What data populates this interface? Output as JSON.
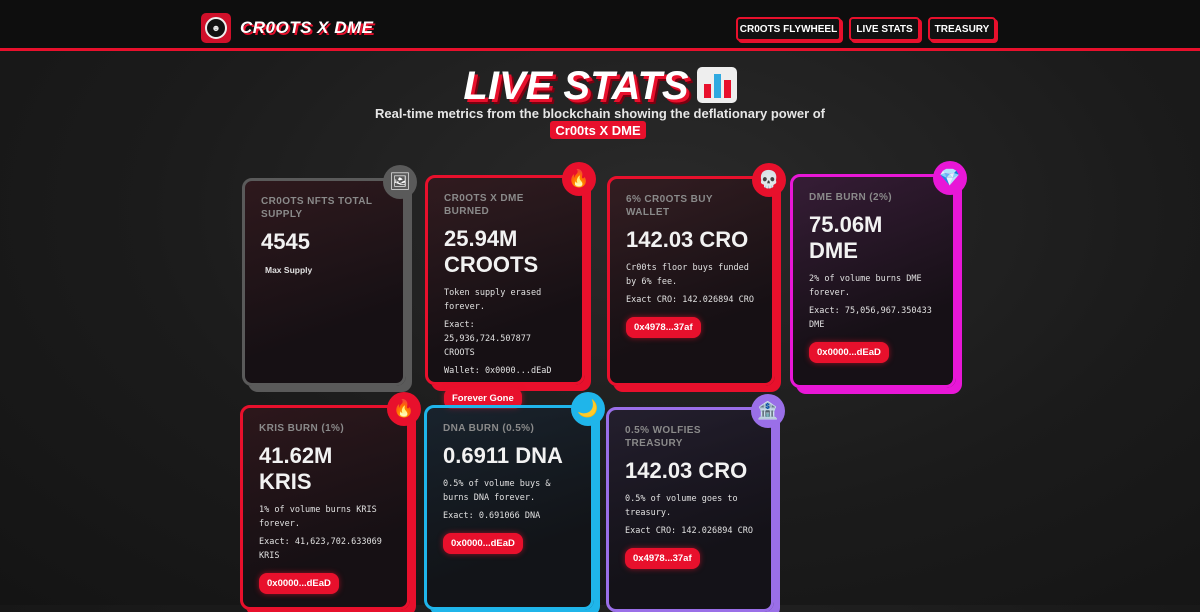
{
  "header": {
    "brand": "CR0OTS X DME",
    "nav": [
      "CR0OTS FLYWHEEL",
      "LIVE STATS",
      "TREASURY"
    ]
  },
  "hero": {
    "title": "LIVE STATS",
    "subtitle": "Real-time metrics from the blockchain showing the deflationary power of",
    "highlight": "Cr00ts X DME"
  },
  "cards": [
    {
      "label": "CR0OTS NFTS TOTAL SUPPLY",
      "value": "4545",
      "desc": "Max Supply",
      "icon": "picture-icon",
      "color": "#5a5a5a"
    },
    {
      "label": "CR0OTS X DME BURNED",
      "value": "25.94M CROOTS",
      "desc": "Token supply erased forever.",
      "exact": "Exact: 25,936,724.507877 CROOTS",
      "wallet": "Wallet: 0x0000...dEaD",
      "pill": "Forever Gone",
      "icon": "fire-icon",
      "color": "#e8102c"
    },
    {
      "label": "6% CR0OTS BUY WALLET",
      "value": "142.03 CRO",
      "desc": "Cr00ts floor buys funded by 6% fee.",
      "exact": "Exact CRO: 142.026894 CRO",
      "pill": "0x4978...37af",
      "icon": "skull-icon",
      "color": "#e8102c"
    },
    {
      "label": "DME BURN (2%)",
      "value": "75.06M DME",
      "desc": "2% of volume burns DME forever.",
      "exact": "Exact: 75,056,967.350433 DME",
      "pill": "0x0000...dEaD",
      "icon": "gem-icon",
      "color": "#e817d7"
    },
    {
      "label": "KRIS BURN (1%)",
      "value": "41.62M KRIS",
      "desc": "1% of volume burns KRIS forever.",
      "exact": "Exact: 41,623,702.633069 KRIS",
      "pill": "0x0000...dEaD",
      "icon": "fire-icon",
      "color": "#e8102c"
    },
    {
      "label": "DNA BURN (0.5%)",
      "value": "0.6911 DNA",
      "desc": "0.5% of volume buys & burns DNA forever.",
      "exact": "Exact: 0.691066 DNA",
      "pill": "0x0000...dEaD",
      "icon": "moon-icon",
      "color": "#1fb5ea"
    },
    {
      "label": "0.5% WOLFIES TREASURY",
      "value": "142.03 CRO",
      "desc": "0.5% of volume goes to treasury.",
      "exact": "Exact CRO: 142.026894 CRO",
      "pill": "0x4978...37af",
      "icon": "bank-icon",
      "color": "#9a6fe8"
    }
  ]
}
